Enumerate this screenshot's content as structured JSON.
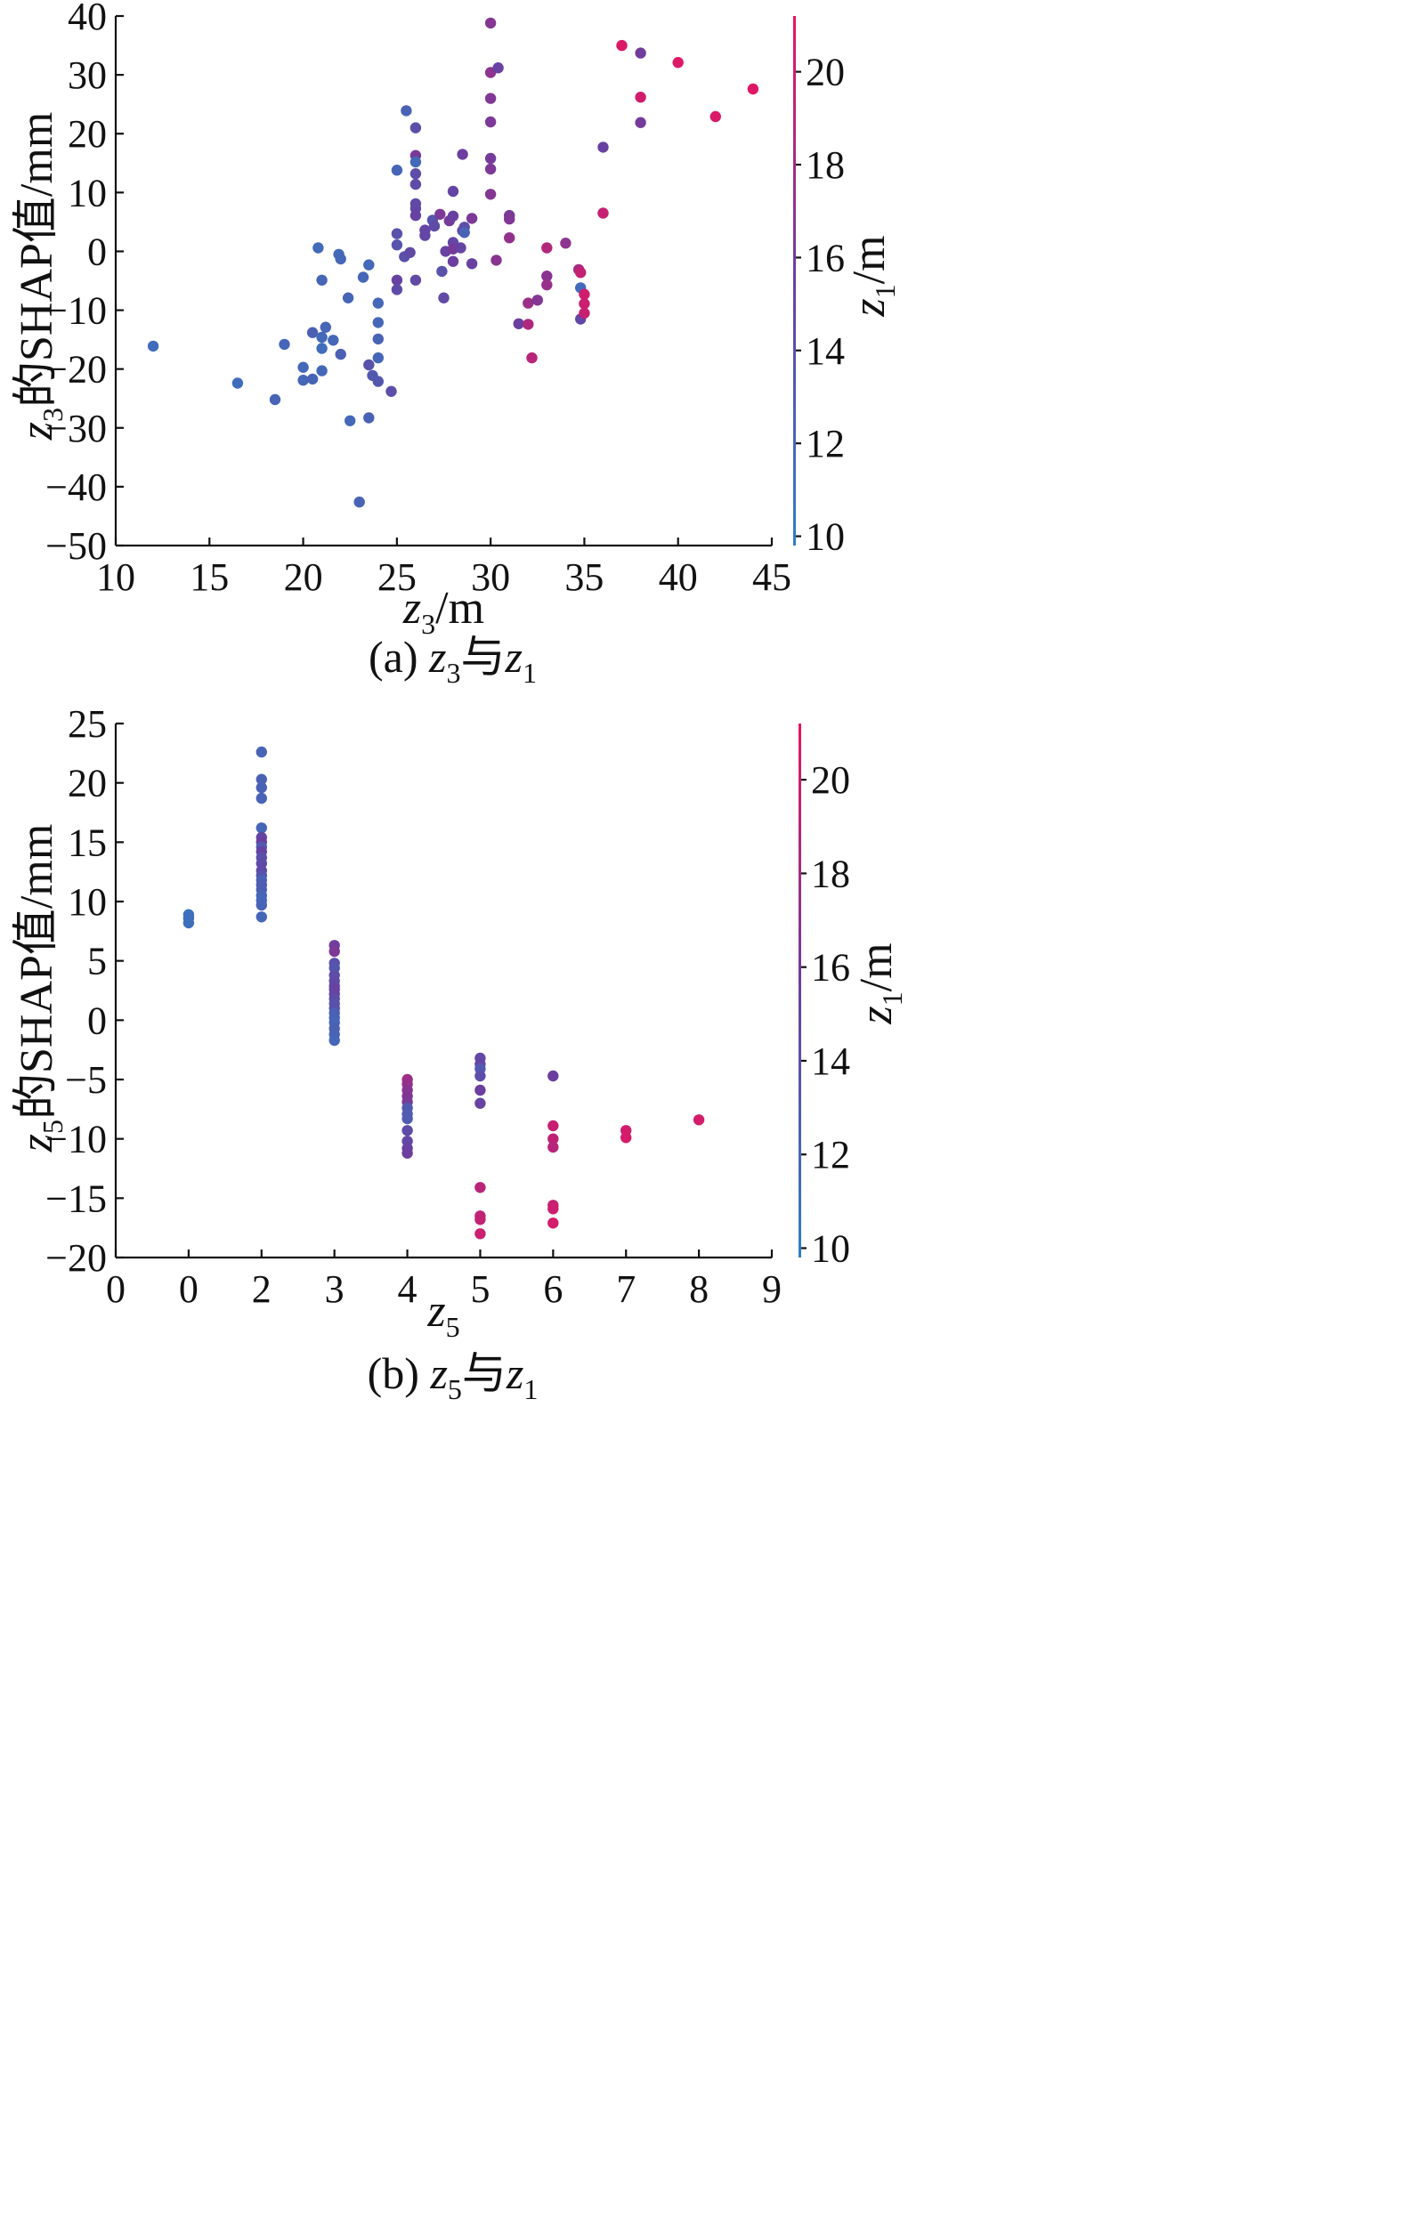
{
  "colors": {
    "low": "#2f7fc6",
    "mid": "#6a3fa0",
    "high": "#ea1460"
  },
  "chart_data": [
    {
      "type": "scatter",
      "caption": {
        "prefix": "(a) ",
        "v1": "z",
        "s1": "3",
        "mid": "与",
        "v2": "z",
        "s2": "1"
      },
      "xlabel": {
        "var": "z",
        "sub": "3",
        "unit": "/m"
      },
      "ylabel": {
        "var": "z",
        "sub": "3",
        "text": "的SHAP值/mm"
      },
      "colorbar": {
        "var": "z",
        "sub": "1",
        "unit": "/m",
        "range": [
          9.8,
          21.2
        ],
        "ticks": [
          "10",
          "12",
          "14",
          "16",
          "18",
          "20"
        ]
      },
      "xlim": [
        10,
        45
      ],
      "ylim": [
        -50,
        40
      ],
      "xticks": [
        "10",
        "15",
        "20",
        "25",
        "30",
        "35",
        "40",
        "45"
      ],
      "yticks": [
        "40",
        "30",
        "20",
        "10",
        "0",
        "−10",
        "−20",
        "−30",
        "−40",
        "−50"
      ],
      "points": [
        [
          12,
          -16.1,
          11.5
        ],
        [
          16.5,
          -22.4,
          11.4
        ],
        [
          18.5,
          -25.2,
          12.2
        ],
        [
          19,
          -15.8,
          12.0
        ],
        [
          20,
          -19.7,
          11.8
        ],
        [
          20,
          -21.9,
          12.0
        ],
        [
          20.5,
          -13.8,
          12.6
        ],
        [
          20.5,
          -21.7,
          12.1
        ],
        [
          20.8,
          0.6,
          11.6
        ],
        [
          21,
          -4.9,
          12.1
        ],
        [
          21,
          -14.6,
          11.7
        ],
        [
          21,
          -16.5,
          11.5
        ],
        [
          21,
          -20.3,
          11.9
        ],
        [
          21.2,
          -12.9,
          12.0
        ],
        [
          21.6,
          -15.1,
          11.9
        ],
        [
          21.9,
          -0.5,
          11.8
        ],
        [
          22,
          -1.3,
          12.0
        ],
        [
          22,
          -17.5,
          12.5
        ],
        [
          22.4,
          -7.9,
          12.1
        ],
        [
          22.5,
          -28.8,
          11.8
        ],
        [
          23,
          -42.6,
          12.2
        ],
        [
          23.2,
          -4.4,
          12.0
        ],
        [
          23.5,
          -2.3,
          11.8
        ],
        [
          23.5,
          -28.3,
          12.4
        ],
        [
          23.5,
          -19.3,
          13.8
        ],
        [
          23.7,
          -21.1,
          13.3
        ],
        [
          24,
          -8.8,
          11.9
        ],
        [
          24,
          -12.1,
          11.9
        ],
        [
          24,
          -14.9,
          12.3
        ],
        [
          24,
          -18.1,
          12.0
        ],
        [
          24,
          -22.1,
          13.4
        ],
        [
          24.7,
          -23.8,
          14.2
        ],
        [
          25,
          13.8,
          12.1
        ],
        [
          25,
          3.0,
          13.9
        ],
        [
          25,
          1.1,
          13.6
        ],
        [
          25,
          -4.9,
          15.2
        ],
        [
          25,
          -6.5,
          14.4
        ],
        [
          25.4,
          -0.9,
          14.0
        ],
        [
          25.5,
          23.9,
          12.4
        ],
        [
          25.7,
          -0.2,
          14.6
        ],
        [
          26,
          21.0,
          14.0
        ],
        [
          26,
          16.3,
          16.2
        ],
        [
          26,
          15.2,
          11.7
        ],
        [
          26,
          13.2,
          14.2
        ],
        [
          26,
          11.4,
          14.4
        ],
        [
          26,
          8.1,
          14.6
        ],
        [
          26,
          7.3,
          14.8
        ],
        [
          26,
          6.1,
          15.2
        ],
        [
          26,
          -4.9,
          14.6
        ],
        [
          26.5,
          2.7,
          14.8
        ],
        [
          26.5,
          3.6,
          15.0
        ],
        [
          26.9,
          5.3,
          13.6
        ],
        [
          27,
          4.3,
          14.4
        ],
        [
          27.3,
          6.3,
          16.3
        ],
        [
          27.4,
          -3.4,
          13.8
        ],
        [
          27.5,
          -7.9,
          14.6
        ],
        [
          27.6,
          0.0,
          15.2
        ],
        [
          27.8,
          5.2,
          16.0
        ],
        [
          28,
          10.2,
          15.0
        ],
        [
          28,
          6.0,
          15.4
        ],
        [
          28,
          1.5,
          14.8
        ],
        [
          28,
          -1.7,
          15.5
        ],
        [
          28,
          0.4,
          16.1
        ],
        [
          28.4,
          0.6,
          15.0
        ],
        [
          28.5,
          3.5,
          15.2
        ],
        [
          28.5,
          16.5,
          15.6
        ],
        [
          28.6,
          4.1,
          14.2
        ],
        [
          28.6,
          3.2,
          12.2
        ],
        [
          29,
          -2.1,
          15.3
        ],
        [
          29,
          5.6,
          16.3
        ],
        [
          30,
          38.8,
          16.7
        ],
        [
          30,
          30.4,
          17.1
        ],
        [
          30,
          26.0,
          16.5
        ],
        [
          30,
          22.0,
          16.3
        ],
        [
          30,
          15.8,
          16.0
        ],
        [
          30,
          14.0,
          16.4
        ],
        [
          30,
          9.7,
          16.6
        ],
        [
          30.3,
          -1.5,
          16.9
        ],
        [
          30.4,
          31.2,
          15.2
        ],
        [
          31,
          6.1,
          16.0
        ],
        [
          31,
          5.5,
          16.5
        ],
        [
          31,
          2.3,
          17.2
        ],
        [
          31.5,
          -12.3,
          15.4
        ],
        [
          32,
          -12.4,
          18.5
        ],
        [
          32,
          -8.8,
          17.7
        ],
        [
          32.2,
          -18.1,
          19.0
        ],
        [
          32.5,
          -8.3,
          16.7
        ],
        [
          33,
          0.6,
          18.7
        ],
        [
          33,
          -4.2,
          16.9
        ],
        [
          33,
          -5.7,
          17.5
        ],
        [
          34,
          1.4,
          17.0
        ],
        [
          34.7,
          -3.1,
          18.0
        ],
        [
          34.8,
          -3.6,
          19.5
        ],
        [
          34.8,
          -6.2,
          11.6
        ],
        [
          34.8,
          -11.5,
          14.8
        ],
        [
          35,
          -7.3,
          20.0
        ],
        [
          35,
          -8.9,
          19.8
        ],
        [
          35,
          -10.5,
          19.6
        ],
        [
          36,
          17.7,
          15.2
        ],
        [
          36,
          6.5,
          19.6
        ],
        [
          37,
          35.0,
          20.5
        ],
        [
          38,
          33.7,
          15.8
        ],
        [
          38,
          26.2,
          20.1
        ],
        [
          38,
          21.9,
          16.0
        ],
        [
          40,
          32.1,
          20.6
        ],
        [
          42,
          22.9,
          20.4
        ],
        [
          44,
          27.6,
          20.7
        ]
      ]
    },
    {
      "type": "scatter",
      "caption": {
        "prefix": "(b) ",
        "v1": "z",
        "s1": "5",
        "mid": "与",
        "v2": "z",
        "s2": "1"
      },
      "xlabel": {
        "var": "z",
        "sub": "5",
        "unit": ""
      },
      "ylabel": {
        "var": "z",
        "sub": "5",
        "text": "的SHAP值/mm"
      },
      "colorbar": {
        "var": "z",
        "sub": "1",
        "unit": "/m",
        "range": [
          9.8,
          21.2
        ],
        "ticks": [
          "10",
          "12",
          "14",
          "16",
          "18",
          "20"
        ]
      },
      "xlim": [
        0,
        9
      ],
      "ylim": [
        -20,
        25
      ],
      "xticks": [
        "0",
        "0",
        "2",
        "3",
        "4",
        "5",
        "6",
        "7",
        "8",
        "9"
      ],
      "yticks": [
        "25",
        "20",
        "15",
        "10",
        "5",
        "0",
        "−5",
        "−10",
        "−15",
        "−20"
      ],
      "points": [
        [
          1,
          8.9,
          11.0
        ],
        [
          1,
          8.6,
          11.3
        ],
        [
          1,
          8.2,
          11.2
        ],
        [
          2,
          22.6,
          12.3
        ],
        [
          2,
          20.3,
          12.5
        ],
        [
          2,
          19.6,
          12.4
        ],
        [
          2,
          18.7,
          12.2
        ],
        [
          2,
          16.2,
          12.0
        ],
        [
          2,
          15.4,
          14.8
        ],
        [
          2,
          15.0,
          15.6
        ],
        [
          2,
          14.6,
          13.2
        ],
        [
          2,
          14.2,
          15.2
        ],
        [
          2,
          13.7,
          14.0
        ],
        [
          2,
          13.2,
          14.4
        ],
        [
          2,
          12.6,
          14.6
        ],
        [
          2,
          12.2,
          13.6
        ],
        [
          2,
          11.8,
          12.4
        ],
        [
          2,
          11.4,
          12.8
        ],
        [
          2,
          11.0,
          12.6
        ],
        [
          2,
          10.5,
          12.0
        ],
        [
          2,
          10.1,
          11.8
        ],
        [
          2,
          9.7,
          12.2
        ],
        [
          2,
          8.7,
          12.0
        ],
        [
          3,
          6.3,
          15.8
        ],
        [
          3,
          5.8,
          16.4
        ],
        [
          3,
          4.8,
          14.0
        ],
        [
          3,
          4.4,
          13.4
        ],
        [
          3,
          3.8,
          14.2
        ],
        [
          3,
          3.3,
          14.6
        ],
        [
          3,
          2.9,
          14.8
        ],
        [
          3,
          2.6,
          15.3
        ],
        [
          3,
          2.2,
          15.0
        ],
        [
          3,
          1.8,
          14.4
        ],
        [
          3,
          1.4,
          13.8
        ],
        [
          3,
          1.0,
          14.0
        ],
        [
          3,
          0.6,
          12.6
        ],
        [
          3,
          0.2,
          12.4
        ],
        [
          3,
          -0.2,
          12.2
        ],
        [
          3,
          -0.7,
          12.6
        ],
        [
          3,
          -1.2,
          12.4
        ],
        [
          3,
          -1.7,
          12.0
        ],
        [
          4,
          -5.0,
          17.8
        ],
        [
          4,
          -5.4,
          17.4
        ],
        [
          4,
          -5.9,
          16.8
        ],
        [
          4,
          -6.4,
          16.6
        ],
        [
          4,
          -6.9,
          16.3
        ],
        [
          4,
          -7.4,
          13.2
        ],
        [
          4,
          -7.9,
          12.9
        ],
        [
          4,
          -8.3,
          13.0
        ],
        [
          4,
          -9.3,
          14.4
        ],
        [
          4,
          -10.2,
          14.8
        ],
        [
          4,
          -10.8,
          15.2
        ],
        [
          4,
          -11.2,
          15.6
        ],
        [
          5,
          -3.2,
          14.6
        ],
        [
          5,
          -3.7,
          15.0
        ],
        [
          5,
          -4.1,
          13.2
        ],
        [
          5,
          -4.7,
          14.2
        ],
        [
          5,
          -5.9,
          15.6
        ],
        [
          5,
          -7.0,
          15.2
        ],
        [
          5,
          -14.1,
          19.0
        ],
        [
          5,
          -16.5,
          19.2
        ],
        [
          5,
          -16.8,
          19.4
        ],
        [
          5,
          -18.0,
          19.8
        ],
        [
          6,
          -4.7,
          15.5
        ],
        [
          6,
          -8.9,
          19.6
        ],
        [
          6,
          -10.0,
          19.3
        ],
        [
          6,
          -10.7,
          18.9
        ],
        [
          6,
          -15.6,
          19.5
        ],
        [
          6,
          -15.9,
          19.9
        ],
        [
          6,
          -17.1,
          20.2
        ],
        [
          7,
          -9.3,
          20.1
        ],
        [
          7,
          -9.9,
          20.3
        ],
        [
          8,
          -8.4,
          20.2
        ]
      ]
    }
  ]
}
